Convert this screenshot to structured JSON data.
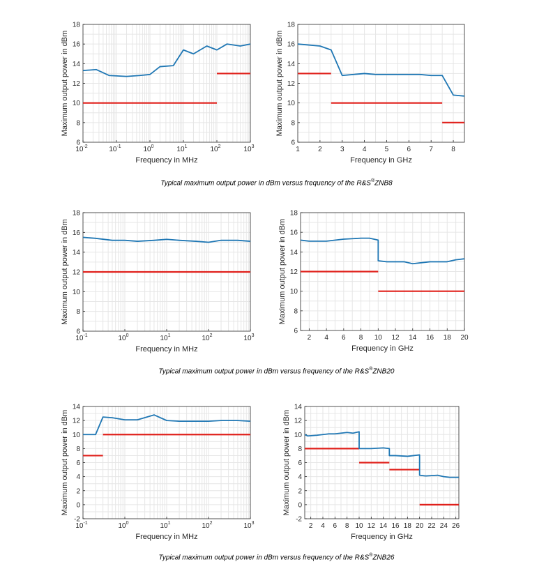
{
  "colors": {
    "measured": "#1f77b4",
    "spec": "#e0201b",
    "grid": "#e6e6e6",
    "axis": "#262626"
  },
  "captions": [
    {
      "pre": "Typical maximum output power in dBm versus frequency of the R&S",
      "sup": "®",
      "post": "ZNB8"
    },
    {
      "pre": "Typical maximum output power in dBm versus frequency of the R&S",
      "sup": "®",
      "post": "ZNB20"
    },
    {
      "pre": "Typical maximum output power in dBm versus frequency of the R&S",
      "sup": "®",
      "post": "ZNB26"
    }
  ],
  "chart_data": [
    {
      "id": "znb8-mhz",
      "type": "line",
      "xlabel": "Frequency in MHz",
      "ylabel": "Maximum output power in dBm",
      "xscale": "log",
      "xlim": [
        0.01,
        1000
      ],
      "ylim": [
        6,
        18
      ],
      "xticks": [
        0.01,
        0.1,
        1,
        10,
        100,
        1000
      ],
      "xtick_labels": [
        [
          "10",
          "-2"
        ],
        [
          "10",
          "-1"
        ],
        [
          "10",
          "0"
        ],
        [
          "10",
          "1"
        ],
        [
          "10",
          "2"
        ],
        [
          "10",
          "3"
        ]
      ],
      "yticks": [
        6,
        8,
        10,
        12,
        14,
        16,
        18
      ],
      "grid": true,
      "series": [
        {
          "name": "typical",
          "role": "measured",
          "x": [
            0.01,
            0.025,
            0.06,
            0.2,
            0.5,
            1,
            2,
            5,
            10,
            20,
            50,
            100,
            200,
            500,
            1000
          ],
          "y": [
            13.3,
            13.4,
            12.8,
            12.7,
            12.8,
            12.9,
            13.7,
            13.8,
            15.4,
            15.0,
            15.8,
            15.4,
            16.0,
            15.8,
            16.0
          ]
        }
      ],
      "spec_segments": [
        {
          "x": [
            0.01,
            100
          ],
          "y": 10
        },
        {
          "x": [
            100,
            1000
          ],
          "y": 13
        }
      ]
    },
    {
      "id": "znb8-ghz",
      "type": "line",
      "xlabel": "Frequency in GHz",
      "ylabel": "Maximum output power in dBm",
      "xscale": "linear",
      "xlim": [
        1,
        8.5
      ],
      "ylim": [
        6,
        18
      ],
      "xticks": [
        1,
        2,
        3,
        4,
        5,
        6,
        7,
        8
      ],
      "yticks": [
        6,
        8,
        10,
        12,
        14,
        16,
        18
      ],
      "grid": true,
      "series": [
        {
          "name": "typical",
          "role": "measured",
          "x": [
            1,
            1.5,
            2,
            2.5,
            3,
            3.5,
            4,
            4.5,
            5,
            5.5,
            6,
            6.5,
            7,
            7.5,
            8,
            8.5
          ],
          "y": [
            16.0,
            15.9,
            15.8,
            15.4,
            12.8,
            12.9,
            13.0,
            12.9,
            12.9,
            12.9,
            12.9,
            12.9,
            12.8,
            12.8,
            10.8,
            10.7
          ]
        }
      ],
      "spec_segments": [
        {
          "x": [
            1,
            2.5
          ],
          "y": 13
        },
        {
          "x": [
            2.5,
            7.5
          ],
          "y": 10
        },
        {
          "x": [
            7.5,
            8.5
          ],
          "y": 8
        }
      ]
    },
    {
      "id": "znb20-mhz",
      "type": "line",
      "xlabel": "Frequency in MHz",
      "ylabel": "Maximum output power in dBm",
      "xscale": "log",
      "xlim": [
        0.1,
        1000
      ],
      "ylim": [
        6,
        18
      ],
      "xticks": [
        0.1,
        1,
        10,
        100,
        1000
      ],
      "xtick_labels": [
        [
          "10",
          "-1"
        ],
        [
          "10",
          "0"
        ],
        [
          "10",
          "1"
        ],
        [
          "10",
          "2"
        ],
        [
          "10",
          "3"
        ]
      ],
      "yticks": [
        6,
        8,
        10,
        12,
        14,
        16,
        18
      ],
      "grid": true,
      "series": [
        {
          "name": "typical",
          "role": "measured",
          "x": [
            0.1,
            0.2,
            0.5,
            1,
            2,
            5,
            10,
            20,
            50,
            100,
            200,
            500,
            1000
          ],
          "y": [
            15.5,
            15.4,
            15.2,
            15.2,
            15.1,
            15.2,
            15.3,
            15.2,
            15.1,
            15.0,
            15.2,
            15.2,
            15.1
          ]
        }
      ],
      "spec_segments": [
        {
          "x": [
            0.1,
            1000
          ],
          "y": 12
        }
      ]
    },
    {
      "id": "znb20-ghz",
      "type": "line",
      "xlabel": "Frequency in GHz",
      "ylabel": "Maximum output power in dBm",
      "xscale": "linear",
      "xlim": [
        1,
        20
      ],
      "ylim": [
        6,
        18
      ],
      "xticks": [
        2,
        4,
        6,
        8,
        10,
        12,
        14,
        16,
        18,
        20
      ],
      "yticks": [
        6,
        8,
        10,
        12,
        14,
        16,
        18
      ],
      "grid": true,
      "series": [
        {
          "name": "typical",
          "role": "measured",
          "x": [
            1,
            2,
            4,
            6,
            8,
            9,
            9.5,
            10,
            10,
            11,
            12,
            13,
            14,
            15,
            16,
            17,
            18,
            19,
            20
          ],
          "y": [
            15.2,
            15.1,
            15.1,
            15.3,
            15.4,
            15.4,
            15.3,
            15.2,
            13.1,
            13.0,
            13.0,
            13.0,
            12.8,
            12.9,
            13.0,
            13.0,
            13.0,
            13.2,
            13.3
          ]
        }
      ],
      "spec_segments": [
        {
          "x": [
            1,
            10
          ],
          "y": 12
        },
        {
          "x": [
            10,
            20
          ],
          "y": 10
        }
      ]
    },
    {
      "id": "znb26-mhz",
      "type": "line",
      "xlabel": "Frequency in MHz",
      "ylabel": "Maximum output power in dBm",
      "xscale": "log",
      "xlim": [
        0.1,
        1000
      ],
      "ylim": [
        -2,
        14
      ],
      "xticks": [
        0.1,
        1,
        10,
        100,
        1000
      ],
      "xtick_labels": [
        [
          "10",
          "-1"
        ],
        [
          "10",
          "0"
        ],
        [
          "10",
          "1"
        ],
        [
          "10",
          "2"
        ],
        [
          "10",
          "3"
        ]
      ],
      "yticks": [
        -2,
        0,
        2,
        4,
        6,
        8,
        10,
        12,
        14
      ],
      "grid": true,
      "series": [
        {
          "name": "typical",
          "role": "measured",
          "x": [
            0.1,
            0.2,
            0.3,
            0.5,
            1,
            2,
            5,
            10,
            20,
            50,
            100,
            200,
            500,
            1000
          ],
          "y": [
            10.0,
            10.0,
            12.5,
            12.4,
            12.1,
            12.1,
            12.8,
            12.0,
            11.9,
            11.9,
            11.9,
            12.0,
            12.0,
            11.9
          ]
        }
      ],
      "spec_segments": [
        {
          "x": [
            0.1,
            0.3
          ],
          "y": 7
        },
        {
          "x": [
            0.3,
            1000
          ],
          "y": 10
        }
      ]
    },
    {
      "id": "znb26-ghz",
      "type": "line",
      "xlabel": "Frequency in GHz",
      "ylabel": "Maximum output power in dBm",
      "xscale": "linear",
      "xlim": [
        1,
        26.5
      ],
      "ylim": [
        -2,
        14
      ],
      "xticks": [
        2,
        4,
        6,
        8,
        10,
        12,
        14,
        16,
        18,
        20,
        22,
        24,
        26
      ],
      "yticks": [
        -2,
        0,
        2,
        4,
        6,
        8,
        10,
        12,
        14
      ],
      "grid": true,
      "series": [
        {
          "name": "typical",
          "role": "measured",
          "x": [
            1,
            1.5,
            3,
            4,
            5,
            6,
            7,
            8,
            9,
            10,
            10,
            12,
            14,
            15,
            15,
            16,
            18,
            20,
            20,
            21,
            23,
            24,
            25,
            26.5
          ],
          "y": [
            10.0,
            9.8,
            9.9,
            10.0,
            10.1,
            10.1,
            10.2,
            10.3,
            10.2,
            10.4,
            8.0,
            8.0,
            8.1,
            8.0,
            7.0,
            7.0,
            6.9,
            7.1,
            4.2,
            4.1,
            4.2,
            4.0,
            3.9,
            3.9
          ]
        }
      ],
      "spec_segments": [
        {
          "x": [
            1,
            10
          ],
          "y": 8
        },
        {
          "x": [
            10,
            15
          ],
          "y": 6
        },
        {
          "x": [
            15,
            20
          ],
          "y": 5
        },
        {
          "x": [
            20,
            26.5
          ],
          "y": 0
        }
      ]
    }
  ]
}
